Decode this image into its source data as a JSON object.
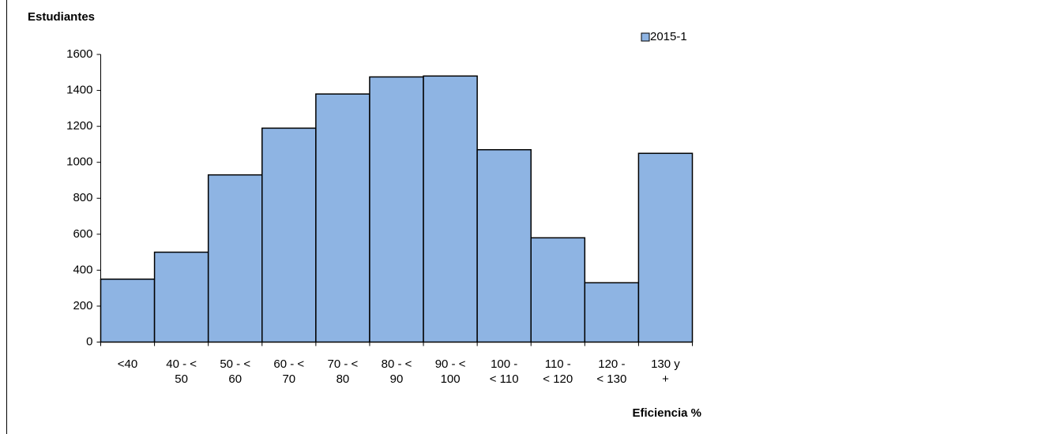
{
  "chart_data": {
    "type": "bar",
    "title": "Estudiantes",
    "x_label": "Eficiencia %",
    "categories": [
      "<40",
      "40 - < 50",
      "50 - < 60",
      "60 - < 70",
      "70 - < 80",
      "80 - < 90",
      "90 - < 100",
      "100 - < 110",
      "110 - < 120",
      "120 - < 130",
      "130 y +"
    ],
    "series": [
      {
        "name": "2015-1",
        "color": "#8eb4e3",
        "values": [
          350,
          500,
          930,
          1190,
          1380,
          1475,
          1480,
          1070,
          580,
          330,
          1050
        ]
      }
    ],
    "ylim": [
      0,
      1600
    ],
    "yticks": [
      0,
      200,
      400,
      600,
      800,
      1000,
      1200,
      1400,
      1600
    ],
    "legend": "top-right",
    "grid": false
  }
}
